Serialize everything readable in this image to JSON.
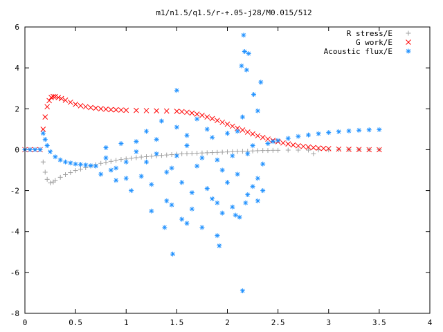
{
  "chart_data": {
    "type": "scatter",
    "title": "m1/n1.5/q1.5/r-+.05-j28/M0.015/512",
    "xlabel": "",
    "ylabel": "",
    "xlim": [
      0,
      4
    ],
    "ylim": [
      -8,
      6
    ],
    "xticks": [
      "0",
      "0.5",
      "1",
      "1.5",
      "2",
      "2.5",
      "3",
      "3.5",
      "4"
    ],
    "yticks": [
      "6",
      "4",
      "2",
      "0",
      "-2",
      "-4",
      "-6",
      "-8"
    ],
    "grid": false,
    "legend_position": "top-right",
    "series": [
      {
        "name": "R stress/E",
        "marker": "+",
        "color": "#a0a0a0",
        "x": [
          0,
          0.05,
          0.1,
          0.15,
          0.18,
          0.2,
          0.22,
          0.25,
          0.28,
          0.3,
          0.35,
          0.4,
          0.45,
          0.5,
          0.55,
          0.6,
          0.65,
          0.7,
          0.75,
          0.8,
          0.85,
          0.9,
          0.95,
          1.0,
          1.05,
          1.1,
          1.15,
          1.2,
          1.25,
          1.3,
          1.35,
          1.4,
          1.45,
          1.5,
          1.55,
          1.6,
          1.65,
          1.7,
          1.75,
          1.8,
          1.85,
          1.9,
          1.95,
          2.0,
          2.05,
          2.1,
          2.15,
          2.2,
          2.25,
          2.3,
          2.35,
          2.4,
          2.45,
          2.5,
          2.6,
          2.7,
          2.8,
          2.85,
          2.9,
          3.0,
          3.1,
          3.2,
          3.3,
          3.4,
          3.5
        ],
        "y": [
          0,
          0,
          0,
          0,
          -0.6,
          -1.1,
          -1.45,
          -1.62,
          -1.58,
          -1.5,
          -1.35,
          -1.22,
          -1.12,
          -1.02,
          -0.95,
          -0.88,
          -0.8,
          -0.73,
          -0.67,
          -0.62,
          -0.57,
          -0.52,
          -0.48,
          -0.45,
          -0.42,
          -0.39,
          -0.36,
          -0.34,
          -0.32,
          -0.3,
          -0.28,
          -0.26,
          -0.24,
          -0.22,
          -0.2,
          -0.19,
          -0.18,
          -0.17,
          -0.16,
          -0.15,
          -0.14,
          -0.13,
          -0.12,
          -0.11,
          -0.1,
          -0.09,
          -0.08,
          -0.07,
          -0.06,
          -0.05,
          -0.04,
          -0.04,
          -0.03,
          -0.03,
          -0.02,
          -0.02,
          -0.02,
          -0.2,
          -0.01,
          -0.01,
          0,
          0,
          0,
          0,
          0
        ]
      },
      {
        "name": "G work/E",
        "marker": "x",
        "color": "#ff0000",
        "x": [
          0,
          0.05,
          0.1,
          0.15,
          0.18,
          0.2,
          0.22,
          0.24,
          0.26,
          0.28,
          0.3,
          0.33,
          0.36,
          0.4,
          0.45,
          0.5,
          0.55,
          0.6,
          0.65,
          0.7,
          0.75,
          0.8,
          0.85,
          0.9,
          0.95,
          1.0,
          1.1,
          1.2,
          1.3,
          1.4,
          1.5,
          1.55,
          1.6,
          1.65,
          1.7,
          1.75,
          1.8,
          1.85,
          1.9,
          1.95,
          2.0,
          2.05,
          2.1,
          2.15,
          2.2,
          2.25,
          2.3,
          2.35,
          2.4,
          2.45,
          2.5,
          2.55,
          2.6,
          2.65,
          2.7,
          2.75,
          2.8,
          2.85,
          2.9,
          2.95,
          3.0,
          3.1,
          3.2,
          3.3,
          3.4,
          3.5
        ],
        "y": [
          0,
          0,
          0,
          0,
          1.0,
          1.6,
          2.1,
          2.4,
          2.55,
          2.6,
          2.6,
          2.55,
          2.5,
          2.42,
          2.32,
          2.22,
          2.15,
          2.1,
          2.06,
          2.03,
          2.0,
          1.98,
          1.96,
          1.95,
          1.94,
          1.93,
          1.92,
          1.91,
          1.9,
          1.89,
          1.88,
          1.86,
          1.83,
          1.79,
          1.74,
          1.68,
          1.6,
          1.52,
          1.43,
          1.34,
          1.25,
          1.15,
          1.05,
          0.96,
          0.86,
          0.77,
          0.68,
          0.6,
          0.52,
          0.45,
          0.39,
          0.33,
          0.28,
          0.23,
          0.19,
          0.16,
          0.13,
          0.1,
          0.08,
          0.06,
          0.05,
          0.03,
          0.02,
          0.01,
          0.0,
          0.0
        ]
      },
      {
        "name": "Acoustic flux/E",
        "marker": "*",
        "color": "#1e90ff",
        "x": [
          0,
          0.05,
          0.1,
          0.15,
          0.18,
          0.2,
          0.22,
          0.25,
          0.3,
          0.35,
          0.4,
          0.45,
          0.5,
          0.55,
          0.6,
          0.65,
          0.7,
          2.45,
          2.5,
          2.6,
          2.7,
          2.8,
          2.9,
          3.0,
          3.1,
          3.2,
          3.3,
          3.4,
          3.5,
          0.75,
          0.8,
          0.85,
          0.9,
          0.95,
          1.0,
          1.05,
          1.1,
          1.15,
          1.2,
          1.25,
          1.3,
          1.35,
          1.4,
          1.45,
          1.5,
          1.55,
          1.6,
          1.65,
          1.7,
          1.75,
          1.8,
          1.85,
          1.9,
          1.95,
          2.0,
          2.05,
          2.1,
          2.15,
          2.2,
          2.25,
          2.3,
          2.35,
          2.4,
          0.8,
          0.9,
          1.0,
          1.1,
          1.2,
          1.3,
          1.4,
          1.5,
          1.6,
          1.7,
          1.8,
          1.9,
          2.0,
          2.1,
          2.2,
          2.3,
          2.35,
          1.25,
          1.45,
          1.55,
          1.65,
          1.75,
          1.85,
          1.95,
          2.05,
          2.12,
          2.18,
          2.25,
          1.38,
          1.6,
          1.92,
          2.08,
          2.3,
          2.33,
          1.5,
          2.14,
          2.17,
          2.16,
          2.19,
          2.21,
          2.26,
          1.46,
          1.9,
          2.15
        ],
        "y": [
          0,
          0,
          0,
          0,
          0.8,
          0.5,
          0.2,
          -0.1,
          -0.35,
          -0.5,
          -0.6,
          -0.65,
          -0.7,
          -0.72,
          -0.75,
          -0.78,
          -0.8,
          0.4,
          0.45,
          0.55,
          0.65,
          0.72,
          0.78,
          0.84,
          0.88,
          0.92,
          0.95,
          0.97,
          0.98,
          -1.2,
          0.1,
          -1.0,
          -1.5,
          0.3,
          -0.6,
          -2.0,
          0.4,
          -1.3,
          0.9,
          -1.7,
          -0.2,
          1.4,
          -2.5,
          -0.9,
          1.1,
          -1.6,
          0.7,
          -2.1,
          1.5,
          -0.4,
          -1.9,
          0.6,
          -2.6,
          -1.0,
          0.8,
          -0.3,
          -1.2,
          1.6,
          -2.2,
          0.2,
          1.9,
          -0.7,
          0.3,
          -0.4,
          -0.9,
          -1.4,
          -0.1,
          -0.6,
          0.5,
          -1.1,
          -0.3,
          0.2,
          -0.8,
          1.0,
          -0.5,
          -1.6,
          0.9,
          -0.2,
          -1.4,
          -2.0,
          -3.0,
          -2.7,
          -3.4,
          -2.9,
          -3.8,
          -2.4,
          -3.1,
          -2.8,
          -3.3,
          -2.6,
          -1.8,
          -3.8,
          -3.6,
          -4.7,
          -3.2,
          -2.5,
          3.3,
          2.9,
          4.1,
          4.8,
          5.6,
          3.9,
          4.7,
          2.7,
          -5.1,
          -4.2,
          -6.9
        ]
      }
    ]
  }
}
